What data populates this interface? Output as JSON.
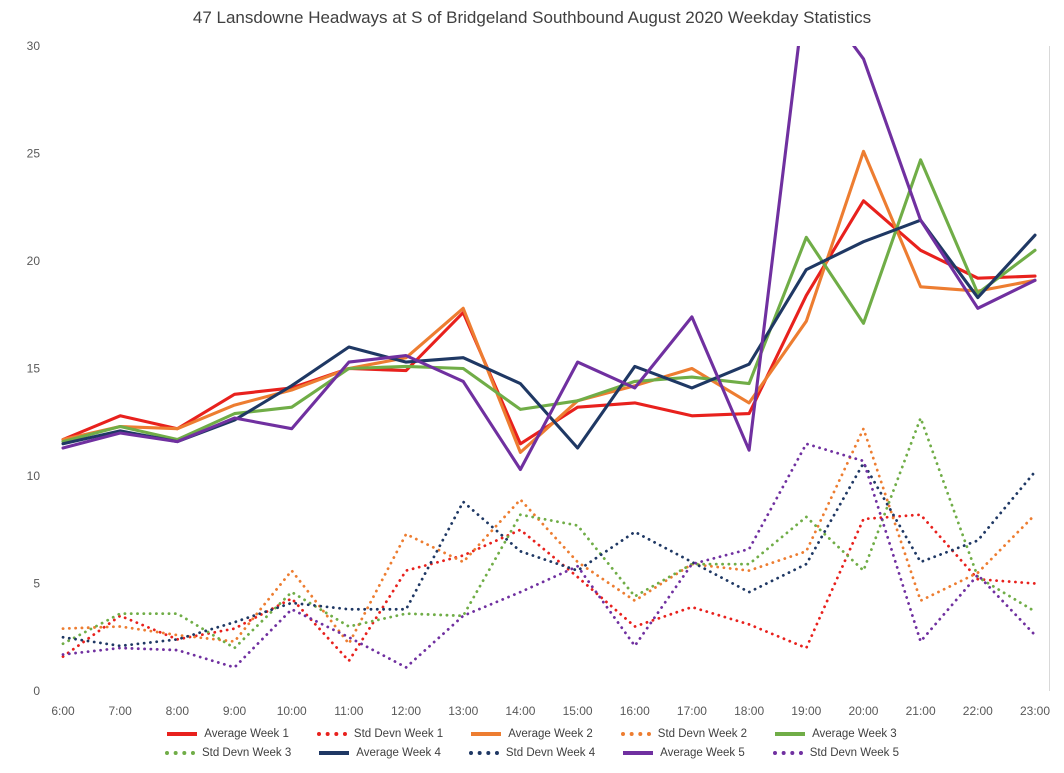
{
  "page": {
    "background": "#ffffff",
    "axis_line_color": "#d9d9d9"
  },
  "chart_data": {
    "type": "line",
    "title": "47 Lansdowne Headways at S of Bridgeland Southbound August 2020 Weekday Statistics",
    "title_color": "#404040",
    "axis_label_color": "#595959",
    "xlabel": "",
    "ylabel": "",
    "grid": false,
    "legend_position": "bottom",
    "ylim": [
      0,
      30
    ],
    "yticks": [
      0,
      5,
      10,
      15,
      20,
      25,
      30
    ],
    "x_labels": [
      "6:00",
      "7:00",
      "8:00",
      "9:00",
      "10:00",
      "11:00",
      "12:00",
      "13:00",
      "14:00",
      "15:00",
      "16:00",
      "17:00",
      "18:00",
      "19:00",
      "20:00",
      "21:00",
      "22:00",
      "23:00"
    ],
    "series": [
      {
        "name": "Average Week 1",
        "color": "#e8211d",
        "line_style": "solid",
        "values": [
          11.7,
          12.8,
          12.2,
          13.8,
          14.1,
          15.0,
          14.9,
          17.6,
          11.5,
          13.2,
          13.4,
          12.8,
          12.9,
          18.4,
          22.8,
          20.5,
          19.2,
          19.3
        ]
      },
      {
        "name": "Std Devn Week 1",
        "color": "#e8211d",
        "line_style": "dotted",
        "values": [
          1.6,
          3.5,
          2.4,
          2.9,
          4.3,
          1.4,
          5.6,
          6.3,
          7.5,
          5.3,
          3.0,
          3.9,
          3.1,
          2.0,
          8.0,
          8.2,
          5.2,
          5.0
        ]
      },
      {
        "name": "Average Week 2",
        "color": "#ed7d31",
        "line_style": "solid",
        "values": [
          11.7,
          12.3,
          12.2,
          13.3,
          14.0,
          15.0,
          15.5,
          17.8,
          11.1,
          13.5,
          14.2,
          15.0,
          13.4,
          17.2,
          25.1,
          18.8,
          18.6,
          19.1
        ]
      },
      {
        "name": "Std Devn Week 2",
        "color": "#ed7d31",
        "line_style": "dotted",
        "values": [
          2.9,
          3.0,
          2.6,
          2.3,
          5.6,
          2.2,
          7.3,
          6.0,
          8.9,
          6.0,
          4.2,
          5.9,
          5.6,
          6.5,
          12.2,
          4.2,
          5.5,
          8.2
        ]
      },
      {
        "name": "Average Week 3",
        "color": "#70ad47",
        "line_style": "solid",
        "values": [
          11.6,
          12.3,
          11.7,
          12.9,
          13.2,
          15.0,
          15.1,
          15.0,
          13.1,
          13.5,
          14.4,
          14.6,
          14.3,
          21.1,
          17.1,
          24.7,
          18.5,
          20.5
        ]
      },
      {
        "name": "Std Devn Week 3",
        "color": "#70ad47",
        "line_style": "dotted",
        "values": [
          2.2,
          3.6,
          3.6,
          2.0,
          4.6,
          3.0,
          3.6,
          3.5,
          8.2,
          7.7,
          4.4,
          5.9,
          5.9,
          8.1,
          5.6,
          12.7,
          5.3,
          3.7
        ]
      },
      {
        "name": "Average Week 4",
        "color": "#1f3864",
        "line_style": "solid",
        "values": [
          11.5,
          12.1,
          11.6,
          12.6,
          14.2,
          16.0,
          15.3,
          15.5,
          14.3,
          11.3,
          15.1,
          14.1,
          15.2,
          19.6,
          20.9,
          21.9,
          18.3,
          21.2
        ]
      },
      {
        "name": "Std Devn Week 4",
        "color": "#1f3864",
        "line_style": "dotted",
        "values": [
          2.5,
          2.1,
          2.4,
          3.2,
          4.1,
          3.8,
          3.8,
          8.8,
          6.5,
          5.6,
          7.4,
          6.0,
          4.6,
          5.9,
          10.6,
          6.0,
          7.0,
          10.2
        ]
      },
      {
        "name": "Average Week 5",
        "color": "#7030a0",
        "line_style": "solid",
        "values": [
          11.3,
          12.0,
          11.6,
          12.7,
          12.2,
          15.3,
          15.6,
          14.4,
          10.3,
          15.3,
          14.1,
          17.4,
          11.2,
          33.0,
          29.4,
          21.9,
          17.8,
          19.1
        ]
      },
      {
        "name": "Std Devn Week 5",
        "color": "#7030a0",
        "line_style": "dotted",
        "values": [
          1.7,
          2.0,
          1.9,
          1.1,
          3.8,
          2.5,
          1.1,
          3.5,
          4.6,
          5.8,
          2.1,
          5.9,
          6.6,
          11.5,
          10.7,
          2.3,
          5.4,
          2.6
        ]
      }
    ]
  }
}
